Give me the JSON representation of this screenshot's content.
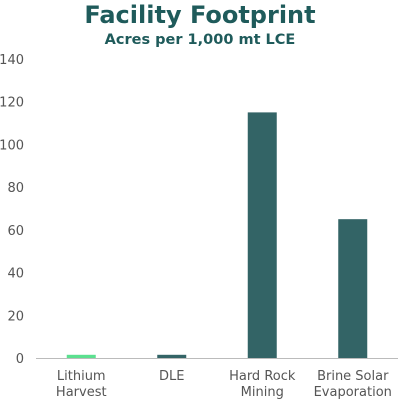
{
  "header": {
    "title": "Facility Footprint",
    "subtitle": "Acres per 1,000 mt LCE"
  },
  "colors": {
    "title": "#1f5b5b",
    "bar_default": "#336466",
    "bar_highlight": "#5be08f",
    "axis_text": "#555555",
    "baseline": "#bbbbbb",
    "grid": "#e6e6e6"
  },
  "chart_data": {
    "type": "bar",
    "title": "Facility Footprint",
    "subtitle": "Acres per 1,000 mt LCE",
    "xlabel": "",
    "ylabel": "",
    "ylim": [
      0,
      140
    ],
    "yticks": [
      0,
      20,
      40,
      60,
      80,
      100,
      120,
      140
    ],
    "grid": false,
    "categories": [
      [
        "Lithium",
        "Harvest"
      ],
      [
        "DLE"
      ],
      [
        "Hard Rock",
        "Mining"
      ],
      [
        "Brine Solar",
        "Evaporation"
      ]
    ],
    "values": [
      1.5,
      1.5,
      115,
      65
    ],
    "highlight_index": 0
  }
}
